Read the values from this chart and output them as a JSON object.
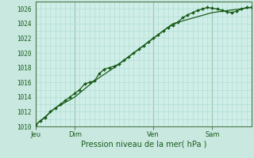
{
  "bg_color": "#c8e8e0",
  "plot_bg_color": "#d0eee8",
  "grid_color": "#b0ddd4",
  "line_color": "#1a5c1a",
  "marker_color": "#1a5c1a",
  "axis_label": "Pression niveau de la mer( hPa )",
  "ylim": [
    1010,
    1027
  ],
  "yticks": [
    1010,
    1012,
    1014,
    1016,
    1018,
    1020,
    1022,
    1024,
    1026
  ],
  "day_labels": [
    "Jeu",
    "Dim",
    "Ven",
    "Sam"
  ],
  "day_positions": [
    0,
    48,
    144,
    216
  ],
  "total_hours": 264,
  "line1_x": [
    0,
    6,
    12,
    18,
    24,
    30,
    36,
    42,
    48,
    54,
    60,
    66,
    72,
    78,
    84,
    90,
    96,
    102,
    108,
    114,
    120,
    126,
    132,
    138,
    144,
    150,
    156,
    162,
    168,
    174,
    180,
    186,
    192,
    198,
    204,
    210,
    216,
    222,
    228,
    234,
    240,
    246,
    252,
    258,
    264
  ],
  "line1_y": [
    1010.2,
    1010.8,
    1011.2,
    1012.0,
    1012.5,
    1013.0,
    1013.5,
    1014.0,
    1014.5,
    1015.0,
    1015.8,
    1016.0,
    1016.2,
    1017.2,
    1017.8,
    1018.0,
    1018.2,
    1018.5,
    1019.0,
    1019.5,
    1020.0,
    1020.5,
    1021.0,
    1021.5,
    1022.0,
    1022.5,
    1023.0,
    1023.5,
    1023.8,
    1024.2,
    1024.8,
    1025.2,
    1025.5,
    1025.8,
    1026.0,
    1026.2,
    1026.1,
    1026.0,
    1025.8,
    1025.6,
    1025.5,
    1025.7,
    1026.0,
    1026.2,
    1026.2
  ],
  "line2_x": [
    0,
    24,
    48,
    72,
    96,
    120,
    144,
    168,
    216,
    264
  ],
  "line2_y": [
    1010.2,
    1012.5,
    1014.0,
    1016.2,
    1018.0,
    1020.0,
    1022.0,
    1024.0,
    1025.5,
    1026.2
  ]
}
